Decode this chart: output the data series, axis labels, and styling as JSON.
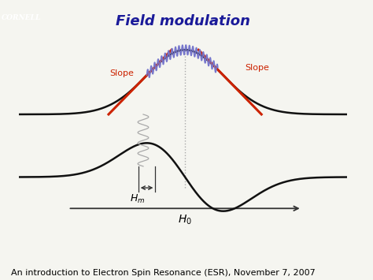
{
  "title": "Field modulation",
  "title_fontsize": 13,
  "title_style": "italic",
  "title_weight": "bold",
  "background_color": "#f5f5f0",
  "absorption_color": "#111111",
  "derivative_color": "#111111",
  "slope_left_color": "#cc2200",
  "slope_right_color": "#cc2200",
  "modulation_color": "#7777cc",
  "coil_color": "#aaaaaa",
  "dashed_color": "#aaaaaa",
  "arrow_color": "#333333",
  "slope_left_label": "Slope",
  "slope_right_label": "Slope",
  "footer_text": "An introduction to Electron Spin Resonance (ESR), November 7, 2007",
  "footer_fontsize": 8,
  "cornell_bg": "#cc2200",
  "cornell_text": "CORNELL",
  "title_color": "#1a1a99"
}
